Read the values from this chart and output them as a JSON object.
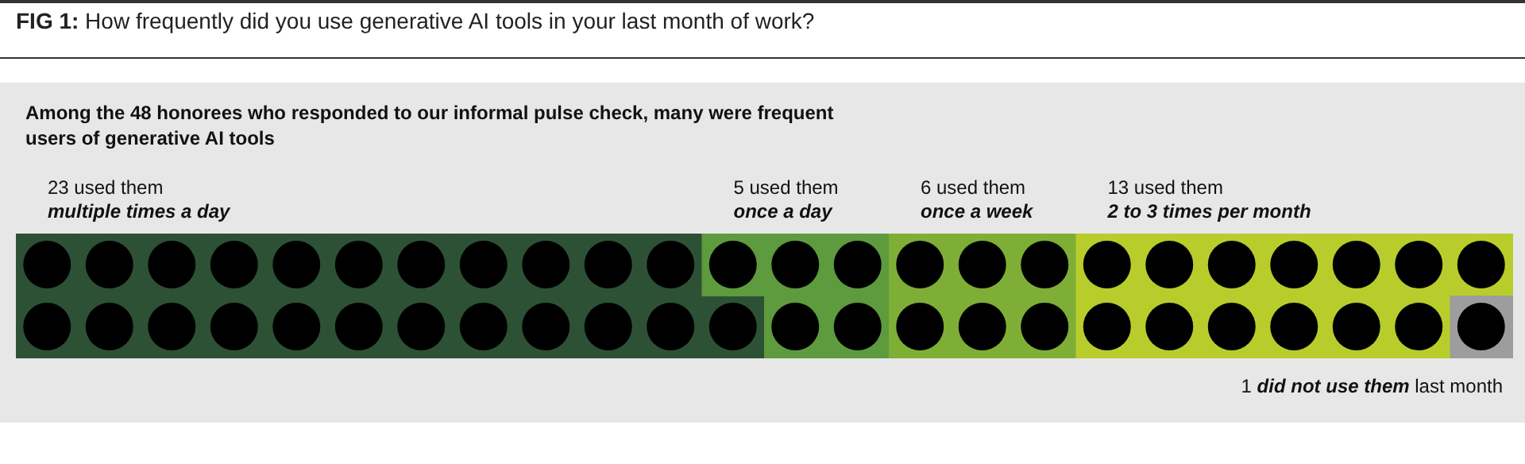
{
  "chart_data": {
    "type": "other",
    "title": "FIG 1: How frequently did you use generative AI tools in your last month of work?",
    "subtitle": "Among the 48 honorees who responded to our informal pulse check, many were frequent users of generative AI tools",
    "categories": [
      "multiple times a day",
      "once a day",
      "once a week",
      "2 to 3 times per month",
      "did not use them"
    ],
    "values": [
      23,
      5,
      6,
      13,
      1
    ],
    "value_labels": [
      "23 used them",
      "5 used them",
      "6 used them",
      "13 used them",
      "1"
    ],
    "colors": [
      "#2d5135",
      "#5e9a3e",
      "#7fae36",
      "#b8cd2b",
      "#9d9d9d"
    ],
    "annotations": [
      "last month"
    ]
  }
}
